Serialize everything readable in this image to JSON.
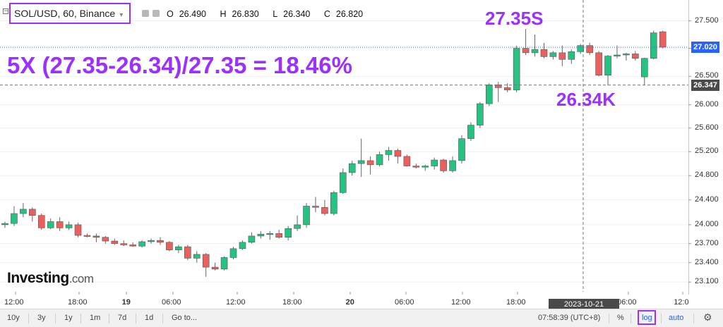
{
  "header": {
    "symbol": "SOL/USD, 60, Binance",
    "ohlc": [
      {
        "k": "O",
        "v": "26.490"
      },
      {
        "k": "H",
        "v": "26.830"
      },
      {
        "k": "L",
        "v": "26.340"
      },
      {
        "k": "C",
        "v": "26.820"
      }
    ]
  },
  "annotations": {
    "formula": "5X (27.35-26.34)/27.35 = 18.46%",
    "short_label": "27.35S",
    "long_label": "26.34K"
  },
  "watermark": {
    "brand": "Investing",
    "suffix": ".com"
  },
  "price_tags": {
    "last": "27.020",
    "crosshair": "26.347"
  },
  "crosshair_time": "2023-10-21 01:00:00",
  "time_axis": [
    "12:00",
    "18:00",
    "19",
    "06:00",
    "12:00",
    "18:00",
    "20",
    "06:00",
    "12:00",
    "18:00",
    "06:00",
    "12:0"
  ],
  "bottom_bar": {
    "ranges": [
      "10y",
      "3y",
      "1y",
      "1m",
      "7d",
      "1d"
    ],
    "goto": "Go to...",
    "clock": "07:58:39 (UTC+8)",
    "percent": "%",
    "log": "log",
    "auto": "auto"
  },
  "colors": {
    "up": "#26c281",
    "down": "#e8615e",
    "accent": "#9b30ff",
    "last_price": "#2962ff",
    "crosshair": "#4a4a4a"
  },
  "chart_data": {
    "type": "candlestick",
    "scale": "log",
    "y_ticks": [
      27.5,
      27.0,
      26.5,
      26.0,
      25.6,
      25.2,
      24.8,
      24.4,
      24.0,
      23.7,
      23.4,
      23.1
    ],
    "y_tick_labels": [
      "27.500",
      "27.000",
      "26.500",
      "26.000",
      "25.600",
      "25.200",
      "24.800",
      "24.400",
      "24.000",
      "23.700",
      "23.400",
      "23.100"
    ],
    "ylim": [
      22.95,
      27.78
    ],
    "candles": [
      {
        "o": 24.0,
        "h": 24.05,
        "l": 23.95,
        "c": 24.02
      },
      {
        "o": 24.02,
        "h": 24.3,
        "l": 23.98,
        "c": 24.18
      },
      {
        "o": 24.18,
        "h": 24.35,
        "l": 24.12,
        "c": 24.25
      },
      {
        "o": 24.25,
        "h": 24.28,
        "l": 24.05,
        "c": 24.15
      },
      {
        "o": 24.15,
        "h": 24.18,
        "l": 23.92,
        "c": 23.95
      },
      {
        "o": 23.95,
        "h": 24.1,
        "l": 23.93,
        "c": 24.05
      },
      {
        "o": 24.05,
        "h": 24.12,
        "l": 23.9,
        "c": 23.95
      },
      {
        "o": 23.95,
        "h": 24.05,
        "l": 23.92,
        "c": 24.0
      },
      {
        "o": 24.0,
        "h": 24.03,
        "l": 23.8,
        "c": 23.83
      },
      {
        "o": 23.83,
        "h": 23.86,
        "l": 23.8,
        "c": 23.82
      },
      {
        "o": 23.82,
        "h": 23.86,
        "l": 23.72,
        "c": 23.8
      },
      {
        "o": 23.8,
        "h": 23.82,
        "l": 23.7,
        "c": 23.74
      },
      {
        "o": 23.74,
        "h": 23.78,
        "l": 23.68,
        "c": 23.7
      },
      {
        "o": 23.7,
        "h": 23.75,
        "l": 23.66,
        "c": 23.68
      },
      {
        "o": 23.68,
        "h": 23.72,
        "l": 23.65,
        "c": 23.66
      },
      {
        "o": 23.66,
        "h": 23.75,
        "l": 23.64,
        "c": 23.73
      },
      {
        "o": 23.73,
        "h": 23.78,
        "l": 23.7,
        "c": 23.75
      },
      {
        "o": 23.75,
        "h": 23.8,
        "l": 23.68,
        "c": 23.72
      },
      {
        "o": 23.72,
        "h": 23.74,
        "l": 23.58,
        "c": 23.6
      },
      {
        "o": 23.6,
        "h": 23.68,
        "l": 23.55,
        "c": 23.65
      },
      {
        "o": 23.65,
        "h": 23.68,
        "l": 23.44,
        "c": 23.47
      },
      {
        "o": 23.47,
        "h": 23.58,
        "l": 23.4,
        "c": 23.53
      },
      {
        "o": 23.53,
        "h": 23.55,
        "l": 23.18,
        "c": 23.33
      },
      {
        "o": 23.33,
        "h": 23.4,
        "l": 23.28,
        "c": 23.3
      },
      {
        "o": 23.3,
        "h": 23.5,
        "l": 23.28,
        "c": 23.48
      },
      {
        "o": 23.48,
        "h": 23.65,
        "l": 23.45,
        "c": 23.62
      },
      {
        "o": 23.62,
        "h": 23.75,
        "l": 23.6,
        "c": 23.72
      },
      {
        "o": 23.72,
        "h": 23.88,
        "l": 23.7,
        "c": 23.82
      },
      {
        "o": 23.82,
        "h": 23.9,
        "l": 23.78,
        "c": 23.85
      },
      {
        "o": 23.85,
        "h": 23.9,
        "l": 23.76,
        "c": 23.86
      },
      {
        "o": 23.86,
        "h": 23.92,
        "l": 23.78,
        "c": 23.8
      },
      {
        "o": 23.8,
        "h": 23.98,
        "l": 23.75,
        "c": 23.94
      },
      {
        "o": 23.94,
        "h": 24.15,
        "l": 23.9,
        "c": 24.0
      },
      {
        "o": 24.0,
        "h": 24.35,
        "l": 23.95,
        "c": 24.3
      },
      {
        "o": 24.3,
        "h": 24.45,
        "l": 24.2,
        "c": 24.28
      },
      {
        "o": 24.28,
        "h": 24.4,
        "l": 24.15,
        "c": 24.18
      },
      {
        "o": 24.18,
        "h": 24.55,
        "l": 24.15,
        "c": 24.52
      },
      {
        "o": 24.52,
        "h": 24.92,
        "l": 24.5,
        "c": 24.85
      },
      {
        "o": 24.85,
        "h": 25.05,
        "l": 24.8,
        "c": 25.0
      },
      {
        "o": 25.0,
        "h": 25.42,
        "l": 24.78,
        "c": 25.05
      },
      {
        "o": 25.05,
        "h": 25.12,
        "l": 24.82,
        "c": 24.98
      },
      {
        "o": 24.98,
        "h": 25.2,
        "l": 24.95,
        "c": 25.15
      },
      {
        "o": 25.15,
        "h": 25.28,
        "l": 25.05,
        "c": 25.22
      },
      {
        "o": 25.22,
        "h": 25.25,
        "l": 25.0,
        "c": 25.12
      },
      {
        "o": 25.12,
        "h": 25.15,
        "l": 24.95,
        "c": 24.96
      },
      {
        "o": 24.96,
        "h": 25.0,
        "l": 24.92,
        "c": 24.94
      },
      {
        "o": 24.94,
        "h": 24.98,
        "l": 24.88,
        "c": 24.96
      },
      {
        "o": 24.96,
        "h": 25.1,
        "l": 24.9,
        "c": 25.06
      },
      {
        "o": 25.06,
        "h": 25.08,
        "l": 24.85,
        "c": 24.88
      },
      {
        "o": 24.88,
        "h": 25.12,
        "l": 24.85,
        "c": 25.05
      },
      {
        "o": 25.05,
        "h": 25.48,
        "l": 25.0,
        "c": 25.42
      },
      {
        "o": 25.42,
        "h": 25.7,
        "l": 25.38,
        "c": 25.65
      },
      {
        "o": 25.65,
        "h": 26.05,
        "l": 25.6,
        "c": 26.02
      },
      {
        "o": 26.02,
        "h": 26.38,
        "l": 25.98,
        "c": 26.35
      },
      {
        "o": 26.35,
        "h": 26.4,
        "l": 26.05,
        "c": 26.3
      },
      {
        "o": 26.3,
        "h": 26.38,
        "l": 26.22,
        "c": 26.26
      },
      {
        "o": 26.26,
        "h": 27.05,
        "l": 26.22,
        "c": 27.0
      },
      {
        "o": 27.0,
        "h": 27.35,
        "l": 26.88,
        "c": 26.92
      },
      {
        "o": 26.92,
        "h": 27.25,
        "l": 26.85,
        "c": 26.98
      },
      {
        "o": 26.98,
        "h": 27.1,
        "l": 26.82,
        "c": 26.85
      },
      {
        "o": 26.85,
        "h": 26.95,
        "l": 26.8,
        "c": 26.92
      },
      {
        "o": 26.92,
        "h": 27.05,
        "l": 26.68,
        "c": 26.8
      },
      {
        "o": 26.8,
        "h": 26.98,
        "l": 26.72,
        "c": 26.94
      },
      {
        "o": 26.94,
        "h": 27.08,
        "l": 26.9,
        "c": 27.05
      },
      {
        "o": 27.05,
        "h": 27.1,
        "l": 26.88,
        "c": 26.92
      },
      {
        "o": 26.92,
        "h": 26.95,
        "l": 26.5,
        "c": 26.52
      },
      {
        "o": 26.52,
        "h": 26.88,
        "l": 26.34,
        "c": 26.86
      },
      {
        "o": 26.86,
        "h": 27.05,
        "l": 26.82,
        "c": 26.88
      },
      {
        "o": 26.88,
        "h": 26.92,
        "l": 26.78,
        "c": 26.9
      },
      {
        "o": 26.9,
        "h": 26.95,
        "l": 26.78,
        "c": 26.82
      },
      {
        "o": 26.49,
        "h": 26.83,
        "l": 26.34,
        "c": 26.82
      },
      {
        "o": 26.82,
        "h": 27.32,
        "l": 26.8,
        "c": 27.28
      },
      {
        "o": 27.3,
        "h": 27.32,
        "l": 27.0,
        "c": 27.02
      }
    ]
  }
}
